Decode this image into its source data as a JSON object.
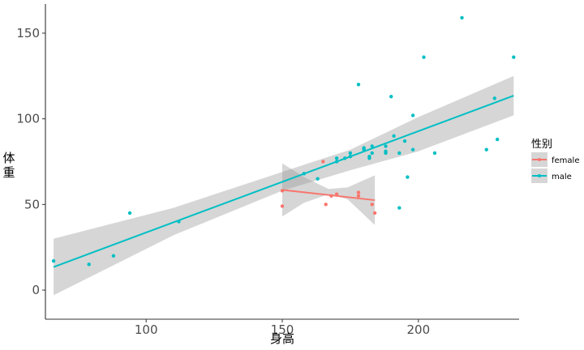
{
  "chart_data": {
    "type": "scatter",
    "title": "",
    "xlabel": "身高",
    "ylabel": "体重",
    "xlim": [
      63,
      237
    ],
    "ylim": [
      -17,
      167
    ],
    "x_ticks": [
      100,
      150,
      200
    ],
    "y_ticks": [
      0,
      50,
      100,
      150
    ],
    "grid": false,
    "legend": {
      "title": "性别",
      "position": "right"
    },
    "colors": {
      "female": "#F8766D",
      "male": "#00BFC4",
      "band": "#999999",
      "axis": "#333333"
    },
    "series": [
      {
        "name": "female",
        "points": [
          [
            150,
            49
          ],
          [
            165,
            75
          ],
          [
            166,
            50
          ],
          [
            168,
            55
          ],
          [
            170,
            56
          ],
          [
            178,
            55
          ],
          [
            178,
            57
          ],
          [
            183,
            50
          ],
          [
            184,
            45
          ],
          [
            150,
            58
          ]
        ],
        "fit": {
          "x0": 150,
          "y0": 58.5,
          "x1": 184,
          "y1": 52.5
        },
        "band": [
          [
            150,
            74,
            43
          ],
          [
            158,
            66,
            51
          ],
          [
            167,
            59,
            56
          ],
          [
            174,
            60,
            53
          ],
          [
            184,
            67,
            38
          ]
        ]
      },
      {
        "name": "male",
        "points": [
          [
            66,
            17
          ],
          [
            79,
            15
          ],
          [
            88,
            20
          ],
          [
            94,
            45
          ],
          [
            112,
            40
          ],
          [
            158,
            68
          ],
          [
            163,
            65
          ],
          [
            170,
            75
          ],
          [
            170,
            77
          ],
          [
            173,
            77
          ],
          [
            175,
            78
          ],
          [
            175,
            80
          ],
          [
            178,
            120
          ],
          [
            180,
            82
          ],
          [
            180,
            83
          ],
          [
            182,
            77
          ],
          [
            182,
            78
          ],
          [
            183,
            80
          ],
          [
            183,
            84
          ],
          [
            188,
            80
          ],
          [
            188,
            81
          ],
          [
            188,
            84
          ],
          [
            190,
            113
          ],
          [
            191,
            90
          ],
          [
            193,
            80
          ],
          [
            193,
            48
          ],
          [
            195,
            87
          ],
          [
            196,
            66
          ],
          [
            198,
            102
          ],
          [
            198,
            82
          ],
          [
            202,
            136
          ],
          [
            206,
            80
          ],
          [
            216,
            159
          ],
          [
            225,
            82
          ],
          [
            228,
            112
          ],
          [
            229,
            88
          ],
          [
            235,
            136
          ]
        ],
        "fit": {
          "x0": 66,
          "y0": 13.5,
          "x1": 235,
          "y1": 113.5
        },
        "band": [
          [
            66,
            30,
            -3
          ],
          [
            110,
            48,
            32
          ],
          [
            150,
            69,
            58
          ],
          [
            175,
            82,
            70
          ],
          [
            200,
            101,
            81
          ],
          [
            235,
            125,
            102
          ]
        ]
      }
    ]
  }
}
